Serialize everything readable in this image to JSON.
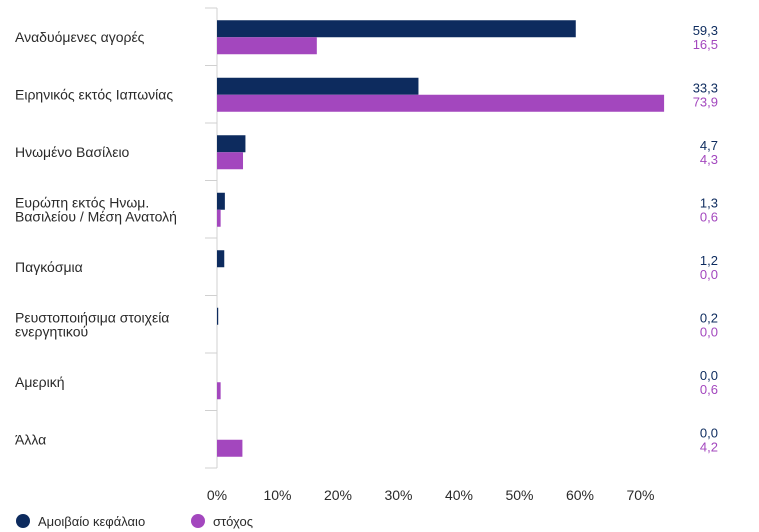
{
  "chart_data": {
    "type": "bar",
    "orientation": "horizontal",
    "categories": [
      [
        "Αναδυόμενες αγορές"
      ],
      [
        "Ειρηνικός εκτός Ιαπωνίας"
      ],
      [
        "Ηνωμένο Βασίλειο"
      ],
      [
        "Ευρώπη εκτός Ηνωμ.",
        "Βασιλείου / Μέση Ανατολή"
      ],
      [
        "Παγκόσμια"
      ],
      [
        "Ρευστοποιήσιμα στοιχεία",
        "ενεργητικού"
      ],
      [
        "Αμερική"
      ],
      [
        "Άλλα"
      ]
    ],
    "series": [
      {
        "name": "Αμοιβαίο κεφάλαιο",
        "color": "#0d2b5e",
        "values": [
          59.3,
          33.3,
          4.7,
          1.3,
          1.2,
          0.2,
          0.0,
          0.0
        ],
        "labels": [
          "59,3",
          "33,3",
          "4,7",
          "1,3",
          "1,2",
          "0,2",
          "0,0",
          "0,0"
        ]
      },
      {
        "name": "στόχος",
        "color": "#a347be",
        "values": [
          16.5,
          73.9,
          4.3,
          0.6,
          0.0,
          0.0,
          0.6,
          4.2
        ],
        "labels": [
          "16,5",
          "73,9",
          "4,3",
          "0,6",
          "0,0",
          "0,0",
          "0,6",
          "4,2"
        ]
      }
    ],
    "x_ticks": [
      0,
      10,
      20,
      30,
      40,
      50,
      60,
      70
    ],
    "x_tick_labels": [
      "0%",
      "10%",
      "20%",
      "30%",
      "40%",
      "50%",
      "60%",
      "70%"
    ],
    "xlim": [
      0,
      80
    ],
    "grid": false,
    "legend_position": "bottom-left"
  }
}
